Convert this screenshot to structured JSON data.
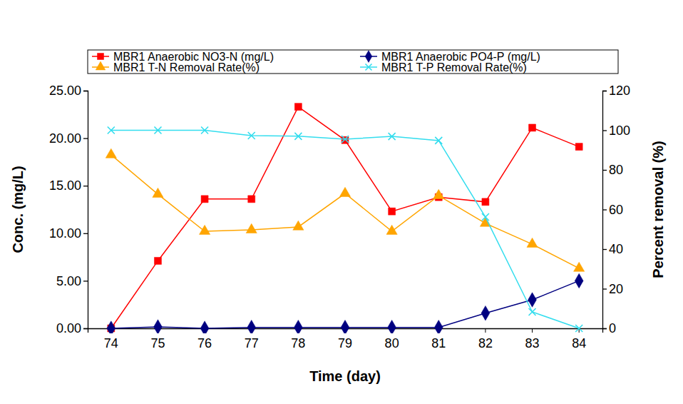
{
  "chart_data": {
    "type": "line",
    "x_label": "Time (day)",
    "y_label": "Conc. (mg/L)",
    "y2_label": "Percent removal (%)",
    "categories": [
      "74",
      "75",
      "76",
      "77",
      "78",
      "79",
      "80",
      "81",
      "82",
      "83",
      "84"
    ],
    "ylim": [
      0,
      25
    ],
    "yticks": [
      {
        "value": 0,
        "label": "0.00"
      },
      {
        "value": 5,
        "label": "5.00"
      },
      {
        "value": 10,
        "label": "10.00"
      },
      {
        "value": 15,
        "label": "15.00"
      },
      {
        "value": 20,
        "label": "20.00"
      },
      {
        "value": 25,
        "label": "25.00"
      }
    ],
    "y2lim": [
      0,
      120
    ],
    "y2ticks": [
      0,
      20,
      40,
      60,
      80,
      100,
      120
    ],
    "grid": false,
    "legend": "top",
    "series": [
      {
        "name": "MBR1 Anaerobic NO3-N (mg/L)",
        "color": "#ff0000",
        "marker": "square",
        "axis": "y",
        "values": [
          0,
          7.1,
          13.6,
          13.6,
          23.3,
          19.8,
          12.3,
          13.8,
          13.3,
          21.1,
          19.1
        ]
      },
      {
        "name": "MBR1 Anaerobic PO4-P (mg/L)",
        "color": "#000080",
        "marker": "diamond",
        "axis": "y",
        "values": [
          0,
          0.15,
          0,
          0.1,
          0.1,
          0.1,
          0.1,
          0.1,
          1.6,
          3.0,
          5.0
        ]
      },
      {
        "name": "MBR1 T-N Removal Rate(%)",
        "color": "#ffa500",
        "marker": "triangle",
        "axis": "y2",
        "values": [
          87.6,
          67.7,
          49,
          49.7,
          51.2,
          68.1,
          49,
          67,
          53,
          42.5,
          30.3
        ]
      },
      {
        "name": "MBR1 T-P Removal Rate(%)",
        "color": "#33ddee",
        "marker": "x",
        "axis": "y2",
        "values": [
          100,
          100,
          100,
          97.3,
          97,
          95.5,
          96.9,
          94.8,
          56.2,
          8.3,
          0
        ]
      }
    ]
  }
}
